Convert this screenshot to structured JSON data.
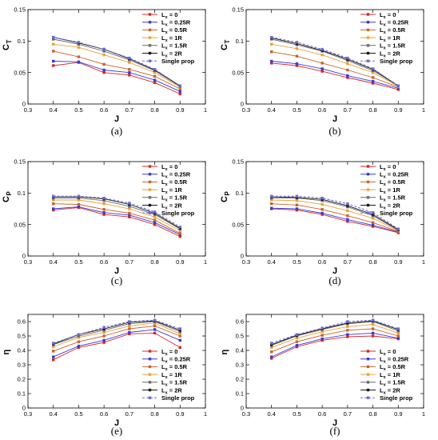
{
  "figure": {
    "legend_entries": [
      "L_x = 0",
      "L_x = 0.25R",
      "L_x = 0.5R",
      "L_x = 1R",
      "L_x = 1.5R",
      "L_x = 2R",
      "Single prop"
    ],
    "series_colors": [
      "#d62728",
      "#3b3bd6",
      "#c8642a",
      "#e9a23b",
      "#6b6b6b",
      "#1a1a1a",
      "#6a6ad8"
    ]
  },
  "chart_data": [
    {
      "type": "line",
      "panel_label": "(a)",
      "xlabel": "J",
      "ylabel": "C",
      "ylabel_sub": "T",
      "xlim": [
        0.3,
        1.0
      ],
      "ylim": [
        0,
        0.15
      ],
      "xticks": [
        "0.3",
        "0.4",
        "0.5",
        "0.6",
        "0.7",
        "0.8",
        "0.9",
        "1"
      ],
      "yticks": [
        "0",
        "0.05",
        "0.1",
        "0.15"
      ],
      "legend_position": "top-right",
      "x": [
        0.4,
        0.5,
        0.6,
        0.7,
        0.8,
        0.9
      ],
      "series": [
        {
          "name": "L = 0",
          "values": [
            0.061,
            0.066,
            0.05,
            0.046,
            0.034,
            0.016
          ]
        },
        {
          "name": "L = 0.25R",
          "values": [
            0.068,
            0.067,
            0.054,
            0.05,
            0.038,
            0.02
          ]
        },
        {
          "name": "L = 0.5R",
          "values": [
            0.084,
            0.075,
            0.063,
            0.055,
            0.044,
            0.024
          ]
        },
        {
          "name": "L = 1R",
          "values": [
            0.095,
            0.09,
            0.078,
            0.066,
            0.05,
            0.027
          ]
        },
        {
          "name": "L = 1.5R",
          "values": [
            0.103,
            0.095,
            0.084,
            0.07,
            0.053,
            0.028
          ]
        },
        {
          "name": "L = 2R",
          "values": [
            0.106,
            0.097,
            0.087,
            0.072,
            0.054,
            0.029
          ]
        },
        {
          "name": "Single prop",
          "values": [
            0.106,
            0.098,
            0.087,
            0.073,
            0.055,
            0.029
          ]
        }
      ]
    },
    {
      "type": "line",
      "panel_label": "(b)",
      "xlabel": "J",
      "ylabel": "C",
      "ylabel_sub": "T",
      "xlim": [
        0.3,
        1.0
      ],
      "ylim": [
        0,
        0.15
      ],
      "xticks": [
        "0.3",
        "0.4",
        "0.5",
        "0.6",
        "0.7",
        "0.8",
        "0.9",
        "1"
      ],
      "yticks": [
        "0",
        "0.05",
        "0.1",
        "0.15"
      ],
      "legend_position": "top-right",
      "x": [
        0.4,
        0.5,
        0.6,
        0.7,
        0.8,
        0.9
      ],
      "series": [
        {
          "name": "L = 0",
          "values": [
            0.065,
            0.061,
            0.052,
            0.042,
            0.033,
            0.023
          ]
        },
        {
          "name": "L = 0.25R",
          "values": [
            0.068,
            0.064,
            0.056,
            0.045,
            0.036,
            0.025
          ]
        },
        {
          "name": "L = 0.5R",
          "values": [
            0.083,
            0.076,
            0.065,
            0.054,
            0.042,
            0.027
          ]
        },
        {
          "name": "L = 1R",
          "values": [
            0.095,
            0.088,
            0.078,
            0.064,
            0.05,
            0.028
          ]
        },
        {
          "name": "L = 1.5R",
          "values": [
            0.103,
            0.094,
            0.084,
            0.069,
            0.053,
            0.029
          ]
        },
        {
          "name": "L = 2R",
          "values": [
            0.105,
            0.096,
            0.085,
            0.071,
            0.055,
            0.029
          ]
        },
        {
          "name": "Single prop",
          "values": [
            0.106,
            0.098,
            0.087,
            0.073,
            0.056,
            0.029
          ]
        }
      ]
    },
    {
      "type": "line",
      "panel_label": "(c)",
      "xlabel": "J",
      "ylabel": "C",
      "ylabel_sub": "P",
      "xlim": [
        0.3,
        1.0
      ],
      "ylim": [
        0,
        0.15
      ],
      "xticks": [
        "0.3",
        "0.4",
        "0.5",
        "0.6",
        "0.7",
        "0.8",
        "0.9",
        "1"
      ],
      "yticks": [
        "0",
        "0.05",
        "0.1",
        "0.15"
      ],
      "legend_position": "top-right",
      "x": [
        0.4,
        0.5,
        0.6,
        0.7,
        0.8,
        0.9
      ],
      "series": [
        {
          "name": "L = 0",
          "values": [
            0.073,
            0.077,
            0.066,
            0.062,
            0.05,
            0.031
          ]
        },
        {
          "name": "L = 0.25R",
          "values": [
            0.075,
            0.078,
            0.069,
            0.065,
            0.053,
            0.034
          ]
        },
        {
          "name": "L = 0.5R",
          "values": [
            0.083,
            0.082,
            0.074,
            0.068,
            0.057,
            0.036
          ]
        },
        {
          "name": "L = 1R",
          "values": [
            0.089,
            0.089,
            0.083,
            0.075,
            0.062,
            0.04
          ]
        },
        {
          "name": "L = 1.5R",
          "values": [
            0.092,
            0.092,
            0.088,
            0.079,
            0.066,
            0.043
          ]
        },
        {
          "name": "L = 2R",
          "values": [
            0.094,
            0.094,
            0.091,
            0.082,
            0.068,
            0.044
          ]
        },
        {
          "name": "Single prop",
          "values": [
            0.095,
            0.095,
            0.092,
            0.084,
            0.07,
            0.046
          ]
        }
      ]
    },
    {
      "type": "line",
      "panel_label": "(d)",
      "xlabel": "J",
      "ylabel": "C",
      "ylabel_sub": "P",
      "xlim": [
        0.3,
        1.0
      ],
      "ylim": [
        0,
        0.15
      ],
      "xticks": [
        "0.3",
        "0.4",
        "0.5",
        "0.6",
        "0.7",
        "0.8",
        "0.9",
        "1"
      ],
      "yticks": [
        "0",
        "0.05",
        "0.1",
        "0.15"
      ],
      "legend_position": "top-right",
      "x": [
        0.4,
        0.5,
        0.6,
        0.7,
        0.8,
        0.9
      ],
      "series": [
        {
          "name": "L = 0",
          "values": [
            0.075,
            0.073,
            0.066,
            0.055,
            0.047,
            0.037
          ]
        },
        {
          "name": "L = 0.25R",
          "values": [
            0.076,
            0.075,
            0.068,
            0.058,
            0.049,
            0.038
          ]
        },
        {
          "name": "L = 0.5R",
          "values": [
            0.083,
            0.081,
            0.074,
            0.064,
            0.053,
            0.039
          ]
        },
        {
          "name": "L = 1R",
          "values": [
            0.089,
            0.088,
            0.082,
            0.072,
            0.06,
            0.04
          ]
        },
        {
          "name": "L = 1.5R",
          "values": [
            0.092,
            0.092,
            0.088,
            0.078,
            0.064,
            0.041
          ]
        },
        {
          "name": "L = 2R",
          "values": [
            0.094,
            0.093,
            0.09,
            0.08,
            0.066,
            0.042
          ]
        },
        {
          "name": "Single prop",
          "values": [
            0.095,
            0.095,
            0.092,
            0.083,
            0.069,
            0.043
          ]
        }
      ]
    },
    {
      "type": "line",
      "panel_label": "(e)",
      "xlabel": "J",
      "ylabel": "η",
      "ylabel_sub": "",
      "xlim": [
        0.3,
        1.0
      ],
      "ylim": [
        0,
        0.65
      ],
      "xticks": [
        "0.3",
        "0.4",
        "0.5",
        "0.6",
        "0.7",
        "0.8",
        "0.9",
        "1"
      ],
      "yticks": [
        "0",
        "0.1",
        "0.2",
        "0.3",
        "0.4",
        "0.5",
        "0.6"
      ],
      "legend_position": "bottom-right",
      "x": [
        0.4,
        0.5,
        0.6,
        0.7,
        0.8,
        0.9
      ],
      "series": [
        {
          "name": "L = 0",
          "values": [
            0.335,
            0.42,
            0.455,
            0.515,
            0.52,
            0.42
          ]
        },
        {
          "name": "L = 0.25R",
          "values": [
            0.355,
            0.43,
            0.47,
            0.525,
            0.545,
            0.47
          ]
        },
        {
          "name": "L = 0.5R",
          "values": [
            0.395,
            0.46,
            0.5,
            0.55,
            0.57,
            0.5
          ]
        },
        {
          "name": "L = 1R",
          "values": [
            0.425,
            0.49,
            0.525,
            0.57,
            0.59,
            0.515
          ]
        },
        {
          "name": "L = 1.5R",
          "values": [
            0.44,
            0.5,
            0.54,
            0.585,
            0.6,
            0.53
          ]
        },
        {
          "name": "L = 2R",
          "values": [
            0.445,
            0.51,
            0.55,
            0.595,
            0.605,
            0.54
          ]
        },
        {
          "name": "Single prop",
          "values": [
            0.45,
            0.51,
            0.56,
            0.6,
            0.61,
            0.55
          ]
        }
      ]
    },
    {
      "type": "line",
      "panel_label": "(f)",
      "xlabel": "J",
      "ylabel": "η",
      "ylabel_sub": "",
      "xlim": [
        0.3,
        1.0
      ],
      "ylim": [
        0,
        0.65
      ],
      "xticks": [
        "0.3",
        "0.4",
        "0.5",
        "0.6",
        "0.7",
        "0.8",
        "0.9",
        "1"
      ],
      "yticks": [
        "0",
        "0.1",
        "0.2",
        "0.3",
        "0.4",
        "0.5",
        "0.6"
      ],
      "legend_position": "bottom-right",
      "x": [
        0.4,
        0.5,
        0.6,
        0.7,
        0.8,
        0.9
      ],
      "series": [
        {
          "name": "L = 0",
          "values": [
            0.345,
            0.425,
            0.47,
            0.495,
            0.5,
            0.48
          ]
        },
        {
          "name": "L = 0.25R",
          "values": [
            0.355,
            0.435,
            0.48,
            0.51,
            0.52,
            0.485
          ]
        },
        {
          "name": "L = 0.5R",
          "values": [
            0.39,
            0.46,
            0.505,
            0.54,
            0.55,
            0.5
          ]
        },
        {
          "name": "L = 1R",
          "values": [
            0.42,
            0.485,
            0.53,
            0.565,
            0.58,
            0.52
          ]
        },
        {
          "name": "L = 1.5R",
          "values": [
            0.435,
            0.5,
            0.545,
            0.585,
            0.6,
            0.535
          ]
        },
        {
          "name": "L = 2R",
          "values": [
            0.44,
            0.505,
            0.55,
            0.59,
            0.605,
            0.545
          ]
        },
        {
          "name": "Single prop",
          "values": [
            0.45,
            0.51,
            0.555,
            0.6,
            0.61,
            0.55
          ]
        }
      ]
    }
  ]
}
